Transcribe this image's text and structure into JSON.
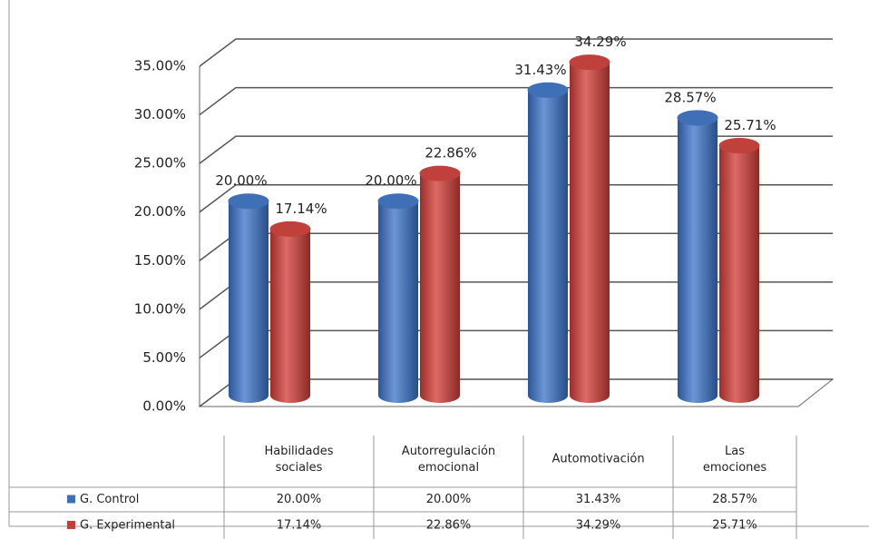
{
  "chart_data": {
    "type": "bar",
    "categories": [
      "Habilidades sociales",
      "Autorregulación emocional",
      "Automotivación",
      "Las emociones"
    ],
    "series": [
      {
        "name": "G. Control",
        "color": "#3f6fb6",
        "values": [
          20,
          20,
          31.43,
          28.57
        ],
        "value_labels": [
          "20.00%",
          "20.00%",
          "31.43%",
          "28.57%"
        ]
      },
      {
        "name": "G. Experimental",
        "color": "#c0403c",
        "values": [
          17.14,
          22.86,
          34.29,
          25.71
        ],
        "value_labels": [
          "17.14%",
          "22.86%",
          "34.29%",
          "25.71%"
        ]
      }
    ],
    "ylim": [
      0,
      35
    ],
    "yticks": [
      {
        "value": 0,
        "label": "0.00%"
      },
      {
        "value": 5,
        "label": "5.00%"
      },
      {
        "value": 10,
        "label": "10.00%"
      },
      {
        "value": 15,
        "label": "15.00%"
      },
      {
        "value": 20,
        "label": "20.00%"
      },
      {
        "value": 25,
        "label": "25.00%"
      },
      {
        "value": 30,
        "label": "30.00%"
      },
      {
        "value": 35,
        "label": "35.00%"
      }
    ],
    "grid": true
  }
}
